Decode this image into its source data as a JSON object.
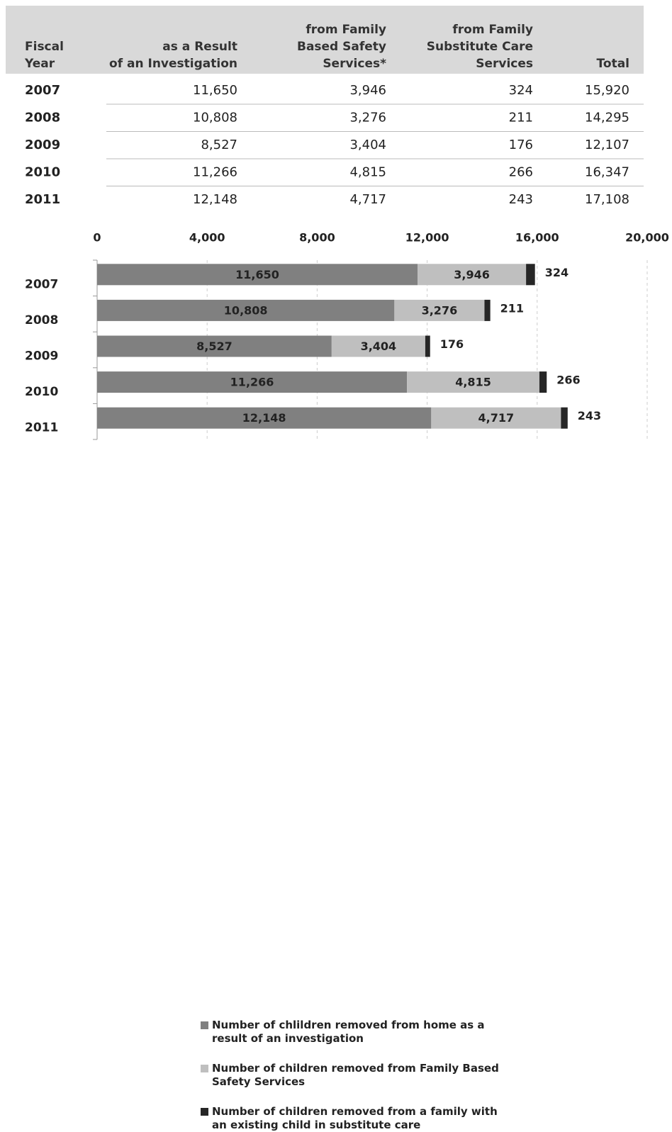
{
  "table": {
    "header": [
      "Fiscal Year",
      "as a Result of an Investigation",
      "from Family Based Safety Services*",
      "from Family Substitute Care Services",
      "Total"
    ],
    "rows": [
      [
        "2007",
        "11,650",
        "3,946",
        "324",
        "15,920"
      ],
      [
        "2008",
        "10,808",
        "3,276",
        "211",
        "14,295"
      ],
      [
        "2009",
        "8,527",
        "3,404",
        "176",
        "12,107"
      ],
      [
        "2010",
        "11,266",
        "4,815",
        "266",
        "16,347"
      ],
      [
        "2011",
        "12,148",
        "4,717",
        "243",
        "17,108"
      ]
    ]
  },
  "chart_data": {
    "type": "bar",
    "orientation": "horizontal",
    "stacked": true,
    "categories": [
      "2007",
      "2008",
      "2009",
      "2010",
      "2011"
    ],
    "series": [
      {
        "name": "Number of chlildren removed from home as a result of an investigation",
        "color": "#808080",
        "values": [
          11650,
          10808,
          8527,
          11266,
          12148
        ],
        "value_labels": [
          "11,650",
          "10,808",
          "8,527",
          "11,266",
          "12,148"
        ]
      },
      {
        "name": "Number of children removed from Family Based Safety Services",
        "color": "#bfbfbf",
        "values": [
          3946,
          3276,
          3404,
          4815,
          4717
        ],
        "value_labels": [
          "3,946",
          "3,276",
          "3,404",
          "4,815",
          "4,717"
        ]
      },
      {
        "name": "Number of children removed from a family with an existing child in substitute care",
        "color": "#262626",
        "values": [
          324,
          211,
          176,
          266,
          243
        ],
        "value_labels": [
          "324",
          "211",
          "176",
          "266",
          "243"
        ]
      }
    ],
    "xlim": [
      0,
      20000
    ],
    "xticks": [
      0,
      {
        "value": 4000,
        "label": "4,000"
      },
      {
        "value": 8000,
        "label": "8,000"
      },
      {
        "value": 12000,
        "label": "12,000"
      },
      {
        "value": 16000,
        "label": "16,000"
      },
      {
        "value": 20000,
        "label": "20,000"
      }
    ],
    "grid": true,
    "legend": "bottom"
  }
}
